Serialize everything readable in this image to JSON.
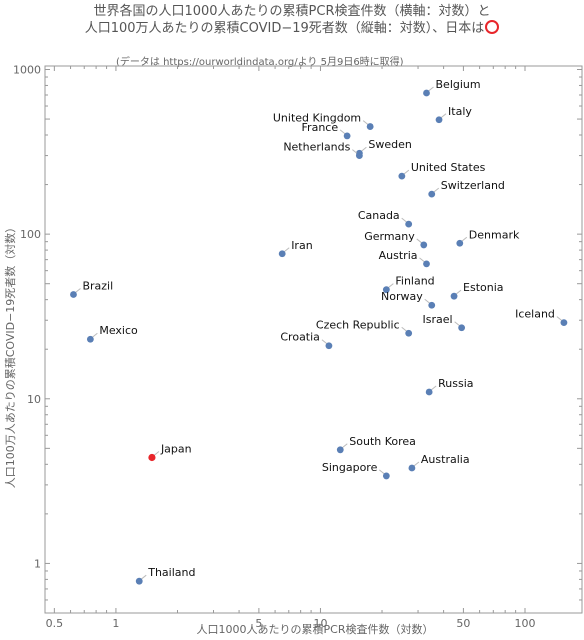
{
  "title_line1": "世界各国の人口1000人あたりの累積PCR検査件数（横軸：対数）と",
  "title_line2": "人口100万人あたりの累積COVID−19死者数（縦軸：対数）、日本は",
  "note": "(データは https://ourworldindata.org/より 5月9日6時に取得)",
  "chart_data": {
    "type": "scatter",
    "xlabel": "人口1000人あたりの累積PCR検査件数（対数）",
    "ylabel": "人口100万人あたりの累積COVID−19死者数（対数）",
    "xscale": "log",
    "yscale": "log",
    "xlim": [
      0.45,
      190
    ],
    "ylim": [
      0.5,
      1050
    ],
    "x_ticks": [
      {
        "v": 0.5,
        "label": "0.5"
      },
      {
        "v": 1,
        "label": "1"
      },
      {
        "v": 5,
        "label": "5"
      },
      {
        "v": 10,
        "label": "10"
      },
      {
        "v": 50,
        "label": "50"
      },
      {
        "v": 100,
        "label": "100"
      }
    ],
    "y_ticks": [
      {
        "v": 1,
        "label": "1"
      },
      {
        "v": 10,
        "label": "10"
      },
      {
        "v": 100,
        "label": "100"
      },
      {
        "v": 1000,
        "label": "1000"
      }
    ],
    "highlight_color": "#e8262b",
    "point_color": "#5a7fb5",
    "points": [
      {
        "name": "Belgium",
        "x": 33,
        "y": 720,
        "side": "right"
      },
      {
        "name": "Italy",
        "x": 38,
        "y": 495,
        "side": "right"
      },
      {
        "name": "United Kingdom",
        "x": 17.5,
        "y": 450,
        "side": "left"
      },
      {
        "name": "France",
        "x": 13.5,
        "y": 395,
        "side": "left"
      },
      {
        "name": "Sweden",
        "x": 15.5,
        "y": 310,
        "side": "right"
      },
      {
        "name": "Netherlands",
        "x": 15.5,
        "y": 300,
        "side": "left"
      },
      {
        "name": "United States",
        "x": 25,
        "y": 225,
        "side": "right"
      },
      {
        "name": "Switzerland",
        "x": 35,
        "y": 175,
        "side": "right"
      },
      {
        "name": "Canada",
        "x": 27,
        "y": 115,
        "side": "left"
      },
      {
        "name": "Denmark",
        "x": 48,
        "y": 88,
        "side": "right"
      },
      {
        "name": "Germany",
        "x": 32,
        "y": 86,
        "side": "left"
      },
      {
        "name": "Iran",
        "x": 6.5,
        "y": 76,
        "side": "right"
      },
      {
        "name": "Austria",
        "x": 33,
        "y": 66,
        "side": "left"
      },
      {
        "name": "Finland",
        "x": 21,
        "y": 46,
        "side": "right"
      },
      {
        "name": "Estonia",
        "x": 45,
        "y": 42,
        "side": "right"
      },
      {
        "name": "Brazil",
        "x": 0.62,
        "y": 43,
        "side": "right"
      },
      {
        "name": "Norway",
        "x": 35,
        "y": 37,
        "side": "left"
      },
      {
        "name": "Iceland",
        "x": 155,
        "y": 29,
        "side": "left"
      },
      {
        "name": "Israel",
        "x": 49,
        "y": 27,
        "side": "left"
      },
      {
        "name": "Czech Republic",
        "x": 27,
        "y": 25,
        "side": "left"
      },
      {
        "name": "Mexico",
        "x": 0.75,
        "y": 23,
        "side": "right"
      },
      {
        "name": "Croatia",
        "x": 11,
        "y": 21,
        "side": "left"
      },
      {
        "name": "Russia",
        "x": 34,
        "y": 11,
        "side": "right"
      },
      {
        "name": "South Korea",
        "x": 12.5,
        "y": 4.9,
        "side": "right"
      },
      {
        "name": "Japan",
        "x": 1.5,
        "y": 4.4,
        "side": "right",
        "highlight": true
      },
      {
        "name": "Australia",
        "x": 28,
        "y": 3.8,
        "side": "right"
      },
      {
        "name": "Singapore",
        "x": 21,
        "y": 3.4,
        "side": "left"
      },
      {
        "name": "Thailand",
        "x": 1.3,
        "y": 0.78,
        "side": "right"
      }
    ]
  }
}
